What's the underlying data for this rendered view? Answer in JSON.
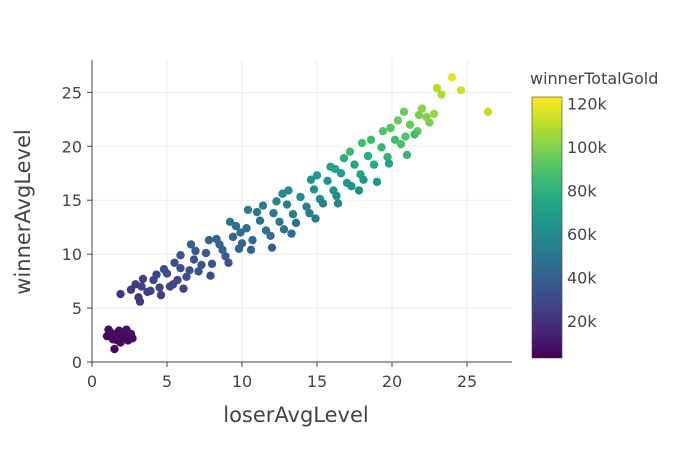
{
  "chart_data": {
    "type": "scatter",
    "title": "",
    "xlabel": "loserAvgLevel",
    "ylabel": "winnerAvgLevel",
    "xlim": [
      0,
      28
    ],
    "ylim": [
      0,
      28
    ],
    "xticks": [
      0,
      5,
      10,
      15,
      20,
      25
    ],
    "yticks": [
      0,
      5,
      10,
      15,
      20,
      25
    ],
    "grid": true,
    "colorscale": "viridis",
    "colorbar": {
      "title": "winnerTotalGold",
      "range": [
        3000,
        123000
      ],
      "ticks": [
        20000,
        40000,
        60000,
        80000,
        100000,
        120000
      ],
      "tick_labels": [
        "20k",
        "40k",
        "60k",
        "80k",
        "100k",
        "120k"
      ]
    },
    "points": [
      [
        1.0,
        2.4,
        5000
      ],
      [
        1.2,
        2.8,
        6000
      ],
      [
        1.4,
        2.1,
        5500
      ],
      [
        1.6,
        2.6,
        6500
      ],
      [
        1.8,
        2.9,
        7000
      ],
      [
        2.0,
        2.3,
        6000
      ],
      [
        2.2,
        2.7,
        7000
      ],
      [
        2.4,
        2.0,
        6500
      ],
      [
        2.6,
        2.6,
        7500
      ],
      [
        1.5,
        1.2,
        5000
      ],
      [
        1.9,
        1.8,
        6000
      ],
      [
        2.3,
        3.0,
        8000
      ],
      [
        1.1,
        3.0,
        6000
      ],
      [
        2.7,
        2.2,
        7000
      ],
      [
        1.7,
        2.0,
        5500
      ],
      [
        1.9,
        6.3,
        22000
      ],
      [
        2.6,
        6.7,
        24000
      ],
      [
        3.1,
        6.0,
        23000
      ],
      [
        3.3,
        7.0,
        25000
      ],
      [
        3.7,
        6.5,
        26000
      ],
      [
        4.1,
        7.6,
        28000
      ],
      [
        4.5,
        6.9,
        27000
      ],
      [
        5.0,
        8.2,
        30000
      ],
      [
        5.4,
        7.2,
        29000
      ],
      [
        5.9,
        8.7,
        32000
      ],
      [
        6.3,
        7.9,
        31000
      ],
      [
        6.8,
        9.5,
        35000
      ],
      [
        7.1,
        8.4,
        33000
      ],
      [
        7.6,
        10.1,
        38000
      ],
      [
        8.0,
        9.1,
        36000
      ],
      [
        8.5,
        10.9,
        41000
      ],
      [
        8.9,
        9.8,
        39000
      ],
      [
        9.4,
        11.6,
        44000
      ],
      [
        9.8,
        10.5,
        42000
      ],
      [
        10.3,
        12.4,
        47000
      ],
      [
        10.7,
        11.3,
        45000
      ],
      [
        11.2,
        13.1,
        50000
      ],
      [
        11.6,
        12.2,
        48000
      ],
      [
        12.1,
        13.8,
        53000
      ],
      [
        12.5,
        13.0,
        51000
      ],
      [
        13.0,
        14.6,
        56000
      ],
      [
        13.4,
        13.7,
        54000
      ],
      [
        13.9,
        15.3,
        59000
      ],
      [
        14.3,
        14.4,
        57000
      ],
      [
        14.8,
        16.0,
        62000
      ],
      [
        15.2,
        15.1,
        60000
      ],
      [
        15.7,
        16.8,
        66000
      ],
      [
        16.1,
        15.9,
        64000
      ],
      [
        16.6,
        17.5,
        70000
      ],
      [
        17.0,
        16.6,
        68000
      ],
      [
        17.5,
        18.3,
        74000
      ],
      [
        17.9,
        17.4,
        72000
      ],
      [
        18.4,
        19.1,
        78000
      ],
      [
        18.8,
        18.3,
        76000
      ],
      [
        19.3,
        19.9,
        82000
      ],
      [
        19.7,
        19.0,
        80000
      ],
      [
        20.2,
        20.6,
        86000
      ],
      [
        20.6,
        20.2,
        88000
      ],
      [
        21.2,
        22.0,
        95000
      ],
      [
        21.7,
        21.4,
        93000
      ],
      [
        22.0,
        23.5,
        101000
      ],
      [
        22.5,
        22.2,
        99000
      ],
      [
        23.0,
        25.4,
        110000
      ],
      [
        23.3,
        24.8,
        108000
      ],
      [
        24.0,
        26.4,
        118000
      ],
      [
        24.6,
        25.2,
        114000
      ],
      [
        26.4,
        23.2,
        112000
      ],
      [
        21.8,
        22.9,
        98000
      ],
      [
        22.8,
        23.0,
        104000
      ],
      [
        20.8,
        23.2,
        96000
      ],
      [
        19.4,
        21.4,
        90000
      ],
      [
        17.2,
        19.5,
        84000
      ],
      [
        18.0,
        20.3,
        86000
      ],
      [
        16.8,
        18.9,
        78000
      ],
      [
        15.9,
        18.1,
        74000
      ],
      [
        14.6,
        16.9,
        66000
      ],
      [
        13.1,
        15.9,
        61000
      ],
      [
        12.3,
        14.9,
        57000
      ],
      [
        11.0,
        13.9,
        52000
      ],
      [
        9.6,
        12.6,
        46000
      ],
      [
        8.3,
        11.4,
        41000
      ],
      [
        6.9,
        10.3,
        37000
      ],
      [
        5.5,
        9.2,
        32000
      ],
      [
        4.3,
        8.1,
        28000
      ],
      [
        3.4,
        7.7,
        26000
      ],
      [
        6.1,
        6.8,
        27000
      ],
      [
        7.9,
        8.0,
        31000
      ],
      [
        9.1,
        9.2,
        35000
      ],
      [
        10.6,
        10.4,
        40000
      ],
      [
        12.8,
        12.3,
        47000
      ],
      [
        14.5,
        13.8,
        53000
      ],
      [
        16.3,
        15.4,
        60000
      ],
      [
        18.1,
        16.9,
        66000
      ],
      [
        19.8,
        18.4,
        72000
      ],
      [
        21.5,
        21.1,
        86000
      ],
      [
        10.0,
        11.0,
        43000
      ],
      [
        11.9,
        11.7,
        46000
      ],
      [
        13.6,
        12.9,
        50000
      ],
      [
        15.4,
        14.7,
        56000
      ],
      [
        17.3,
        16.3,
        63000
      ],
      [
        9.9,
        12.0,
        45000
      ],
      [
        8.7,
        10.4,
        40000
      ],
      [
        7.3,
        9.0,
        35000
      ],
      [
        6.5,
        8.5,
        33000
      ],
      [
        5.2,
        7.0,
        28000
      ],
      [
        4.8,
        8.6,
        30000
      ],
      [
        3.9,
        6.6,
        25000
      ],
      [
        2.9,
        7.2,
        24000
      ],
      [
        3.2,
        5.6,
        22000
      ],
      [
        4.6,
        6.2,
        24000
      ],
      [
        5.7,
        7.6,
        28000
      ],
      [
        12.0,
        10.6,
        41000
      ],
      [
        13.3,
        11.9,
        45000
      ],
      [
        14.9,
        13.3,
        51000
      ],
      [
        16.4,
        14.7,
        57000
      ],
      [
        17.8,
        15.9,
        62000
      ],
      [
        19.0,
        16.7,
        66000
      ],
      [
        11.4,
        14.5,
        55000
      ],
      [
        12.7,
        15.6,
        60000
      ],
      [
        15.0,
        17.3,
        68000
      ],
      [
        16.2,
        17.9,
        72000
      ],
      [
        18.6,
        20.6,
        85000
      ],
      [
        19.9,
        21.7,
        90000
      ],
      [
        20.4,
        22.4,
        95000
      ],
      [
        21.0,
        19.2,
        82000
      ],
      [
        22.3,
        22.7,
        100000
      ],
      [
        20.9,
        20.9,
        90000
      ],
      [
        7.8,
        11.3,
        42000
      ],
      [
        6.6,
        10.9,
        40000
      ],
      [
        5.9,
        9.9,
        36000
      ],
      [
        9.2,
        13.0,
        49000
      ],
      [
        10.4,
        14.1,
        53000
      ]
    ]
  }
}
